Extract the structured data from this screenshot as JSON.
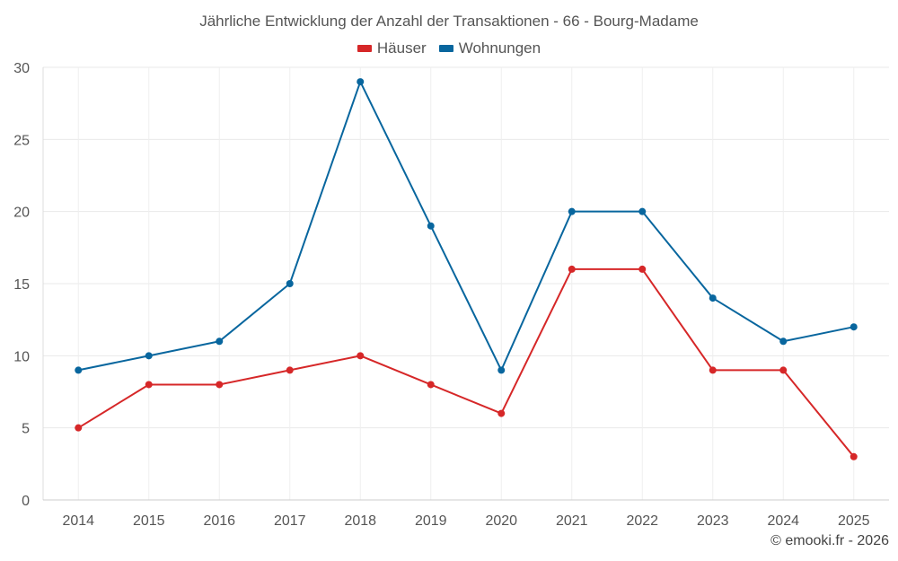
{
  "chart_data": {
    "type": "line",
    "title": "Jährliche Entwicklung der Anzahl der Transaktionen - 66 - Bourg-Madame",
    "categories": [
      "2014",
      "2015",
      "2016",
      "2017",
      "2018",
      "2019",
      "2020",
      "2021",
      "2022",
      "2023",
      "2024",
      "2025"
    ],
    "series": [
      {
        "name": "Häuser",
        "color": "#d62728",
        "values": [
          5,
          8,
          8,
          9,
          10,
          8,
          6,
          16,
          16,
          9,
          9,
          3
        ]
      },
      {
        "name": "Wohnungen",
        "color": "#08669e",
        "values": [
          9,
          10,
          11,
          15,
          29,
          19,
          9,
          20,
          20,
          14,
          11,
          12
        ]
      }
    ],
    "ylim": [
      0,
      30
    ],
    "yticks": [
      0,
      5,
      10,
      15,
      20,
      25,
      30
    ],
    "grid": true,
    "legend": "top-center",
    "xlabel": "",
    "ylabel": ""
  },
  "credit": "© emooki.fr - 2026"
}
